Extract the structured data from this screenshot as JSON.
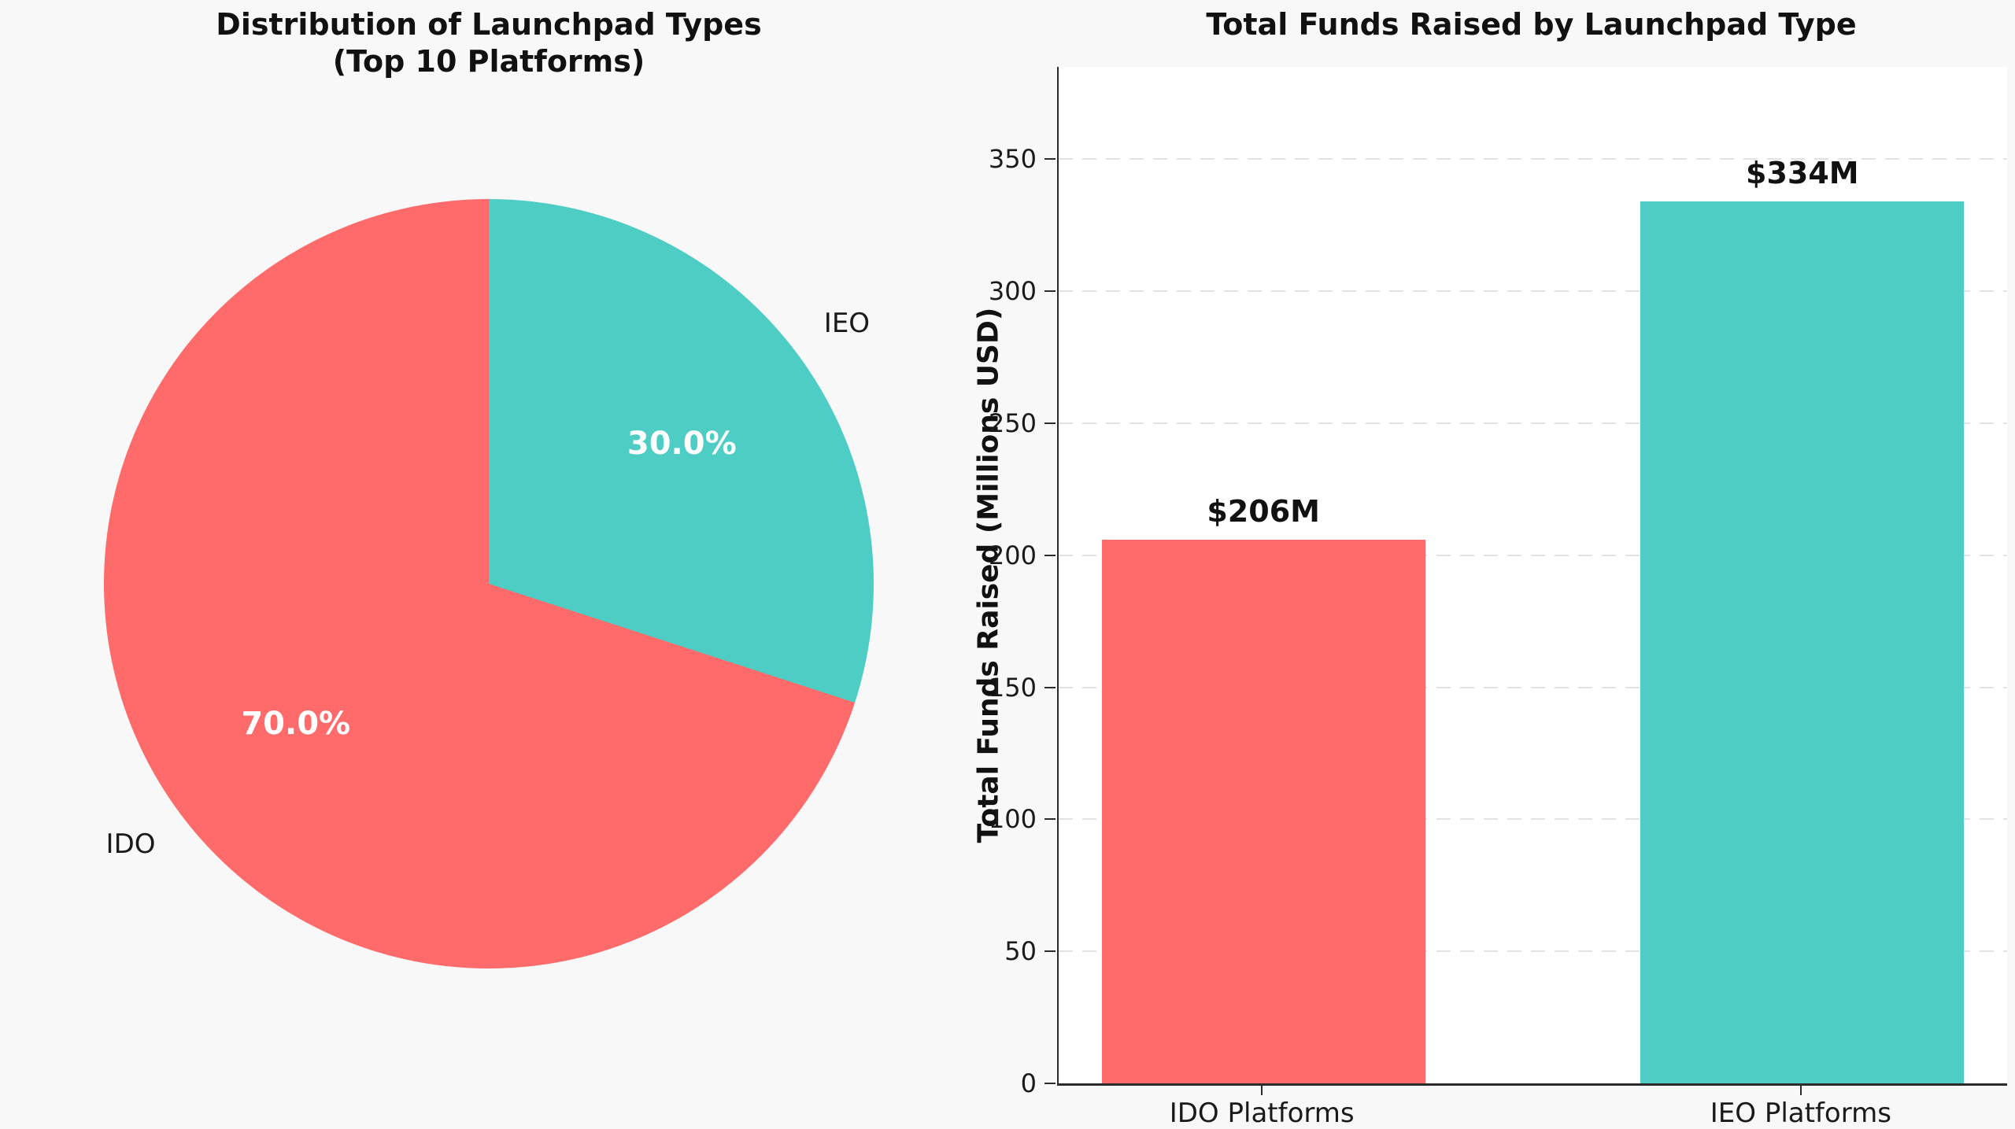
{
  "figure": {
    "background_color": "#f8f8f8",
    "plot_background_color": "#ffffff",
    "grid_color": "#e2e2e2",
    "spine_color": "#2b2b2b",
    "text_color": "#111111"
  },
  "chart_data": [
    {
      "type": "pie",
      "title": "Distribution of Launchpad Types (Top 10 Platforms)",
      "title_lines": [
        "Distribution of Launchpad Types",
        "(Top 10 Platforms)"
      ],
      "labels": [
        "IEO",
        "IDO"
      ],
      "values": [
        30.0,
        70.0
      ],
      "pct_labels": [
        "30.0%",
        "70.0%"
      ],
      "colors": [
        "#4ECDC4",
        "#FF6B6B"
      ],
      "start_angle_deg": 90,
      "counterclock": false,
      "legend": "none"
    },
    {
      "type": "bar",
      "title": "Total Funds Raised by Launchpad Type",
      "categories": [
        "IDO Platforms",
        "IEO Platforms"
      ],
      "values": [
        206,
        334
      ],
      "value_labels": [
        "$206M",
        "$334M"
      ],
      "colors": [
        "#FF6B6B",
        "#4ECDC4"
      ],
      "xlabel": "",
      "ylabel": "Total Funds Raised (Millions USD)",
      "ylim": [
        0,
        385
      ],
      "yticks": [
        0,
        50,
        100,
        150,
        200,
        250,
        300,
        350
      ],
      "grid": "horizontal dashed",
      "legend": "none"
    }
  ]
}
